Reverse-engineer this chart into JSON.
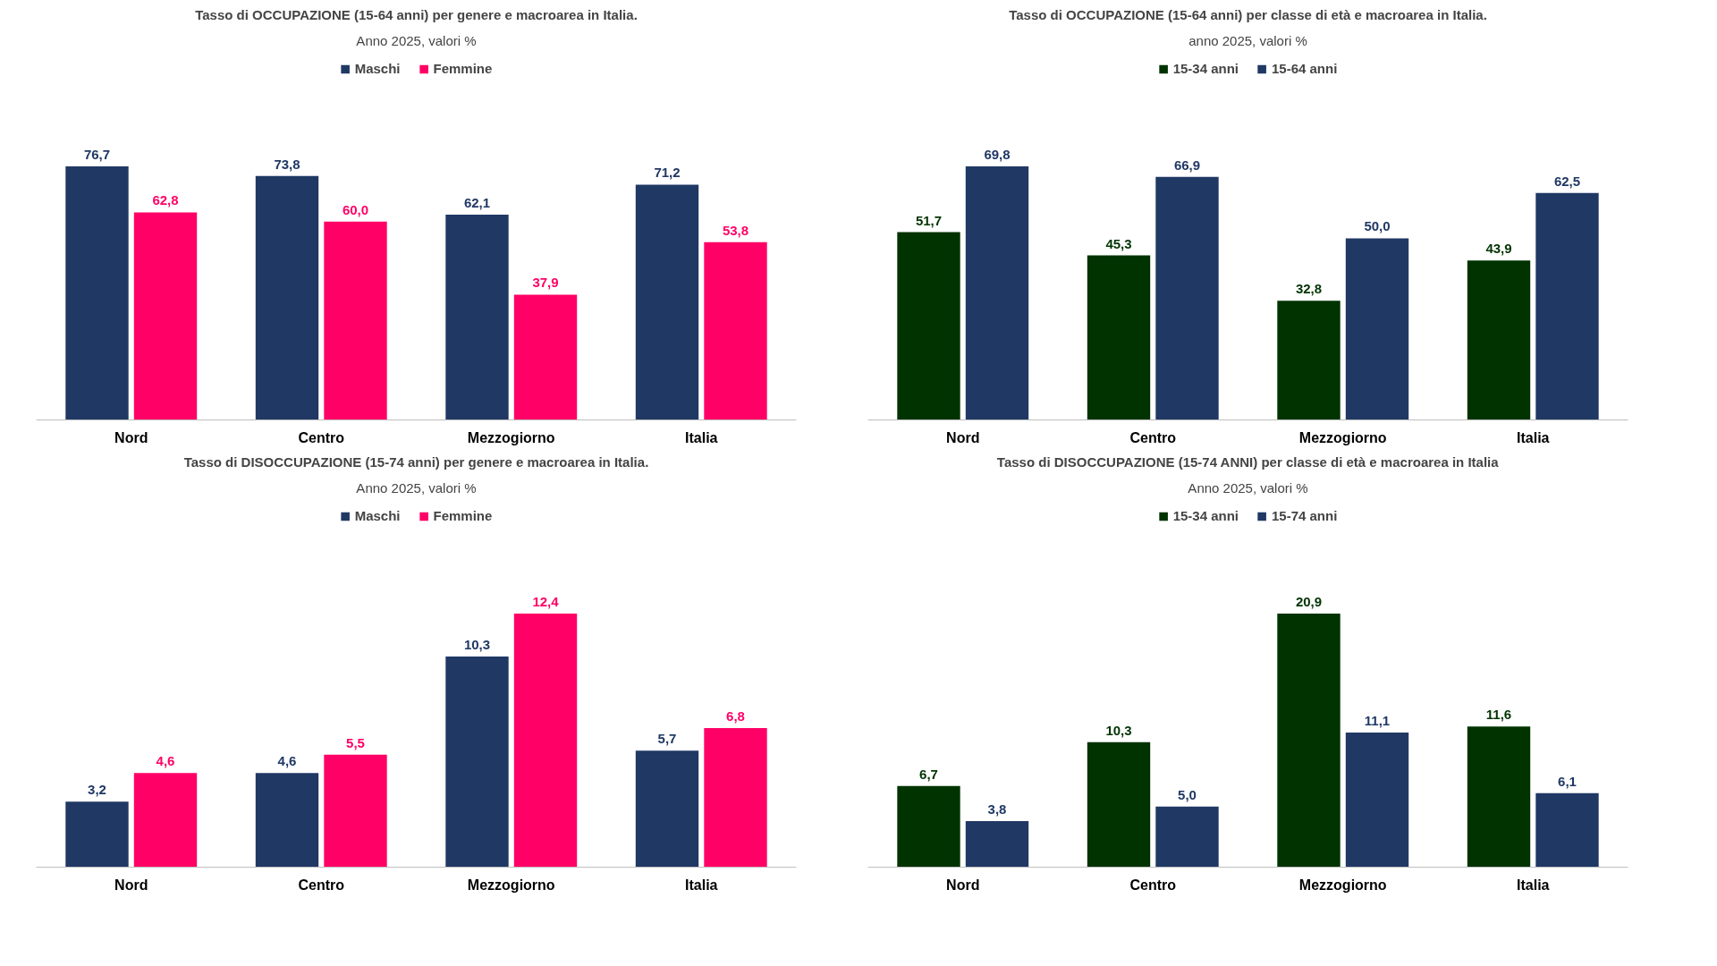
{
  "chart_data": [
    {
      "type": "bar",
      "title": "Tasso di OCCUPAZIONE (15-64 anni) per genere e macroarea in Italia.",
      "subtitle": "Anno 2025, valori %",
      "categories": [
        "Nord",
        "Centro",
        "Mezzogiorno",
        "Italia"
      ],
      "series": [
        {
          "name": "Maschi",
          "color": "#203864",
          "values": [
            76.7,
            73.8,
            62.1,
            71.2
          ],
          "value_labels": [
            "76,7",
            "73,8",
            "62,1",
            "71,2"
          ]
        },
        {
          "name": "Femmine",
          "color": "#ff0066",
          "values": [
            62.8,
            60.0,
            37.9,
            53.8
          ],
          "value_labels": [
            "62,8",
            "60,0",
            "37,9",
            "53,8"
          ]
        }
      ],
      "legend": "top",
      "grid": false,
      "tick_labels": "x"
    },
    {
      "type": "bar",
      "title": "Tasso di OCCUPAZIONE (15-64 anni) per classe di età e macroarea in Italia.",
      "subtitle": "anno 2025, valori %",
      "categories": [
        "Nord",
        "Centro",
        "Mezzogiorno",
        "Italia"
      ],
      "series": [
        {
          "name": "15-34 anni",
          "color": "#003300",
          "values": [
            51.7,
            45.3,
            32.8,
            43.9
          ],
          "value_labels": [
            "51,7",
            "45,3",
            "32,8",
            "43,9"
          ]
        },
        {
          "name": "15-64 anni",
          "color": "#203864",
          "values": [
            69.8,
            66.9,
            50.0,
            62.5
          ],
          "value_labels": [
            "69,8",
            "66,9",
            "50,0",
            "62,5"
          ]
        }
      ],
      "legend": "top",
      "grid": false,
      "tick_labels": "x"
    },
    {
      "type": "bar",
      "title": "Tasso di DISOCCUPAZIONE (15-74 anni) per genere e macroarea in Italia.",
      "subtitle": "Anno 2025, valori %",
      "categories": [
        "Nord",
        "Centro",
        "Mezzogiorno",
        "Italia"
      ],
      "series": [
        {
          "name": "Maschi",
          "color": "#203864",
          "values": [
            3.2,
            4.6,
            10.3,
            5.7
          ],
          "value_labels": [
            "3,2",
            "4,6",
            "10,3",
            "5,7"
          ]
        },
        {
          "name": "Femmine",
          "color": "#ff0066",
          "values": [
            4.6,
            5.5,
            12.4,
            6.8
          ],
          "value_labels": [
            "4,6",
            "5,5",
            "12,4",
            "6,8"
          ]
        }
      ],
      "legend": "top",
      "grid": false,
      "tick_labels": "x"
    },
    {
      "type": "bar",
      "title": "Tasso di DISOCCUPAZIONE (15-74 ANNI) per classe di età e macroarea in Italia",
      "subtitle": "Anno 2025, valori %",
      "categories": [
        "Nord",
        "Centro",
        "Mezzogiorno",
        "Italia"
      ],
      "series": [
        {
          "name": "15-34 anni",
          "color": "#003300",
          "values": [
            6.7,
            10.3,
            20.9,
            11.6
          ],
          "value_labels": [
            "6,7",
            "10,3",
            "20,9",
            "11,6"
          ]
        },
        {
          "name": "15-74 anni",
          "color": "#203864",
          "values": [
            3.8,
            5.0,
            11.1,
            6.1
          ],
          "value_labels": [
            "3,8",
            "5,0",
            "11,1",
            "6,1"
          ]
        }
      ],
      "legend": "top",
      "grid": false,
      "tick_labels": "x"
    }
  ]
}
